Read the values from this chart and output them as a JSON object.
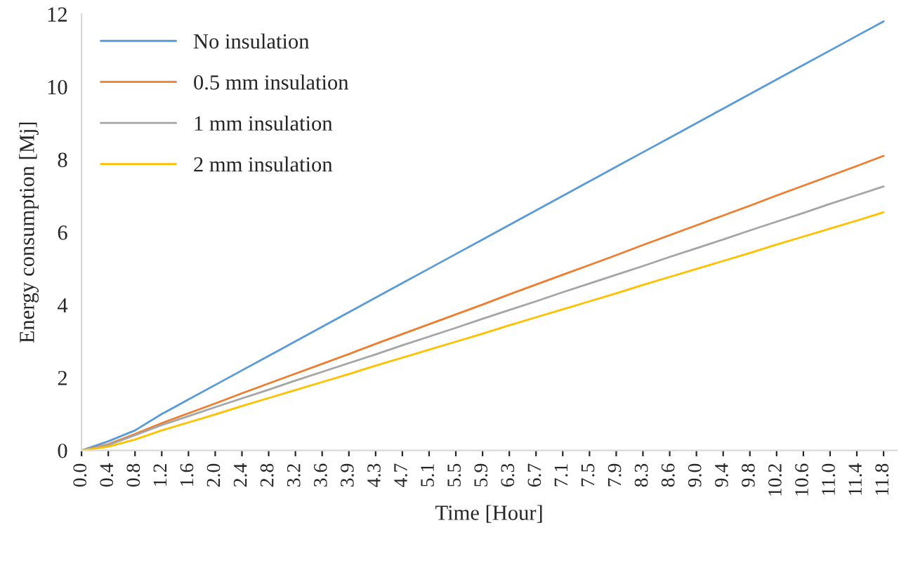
{
  "chart_data": {
    "type": "line",
    "xlabel": "Time [Hour]",
    "ylabel": "Energy consumption [Mj]",
    "categories": [
      "0.0",
      "0.4",
      "0.8",
      "1.2",
      "1.6",
      "2.0",
      "2.4",
      "2.8",
      "3.2",
      "3.6",
      "3.9",
      "4.3",
      "4.7",
      "5.1",
      "5.5",
      "5.9",
      "6.3",
      "6.7",
      "7.1",
      "7.5",
      "7.9",
      "8.3",
      "8.6",
      "9.0",
      "9.4",
      "9.8",
      "10.2",
      "10.6",
      "11.0",
      "11.4",
      "11.8"
    ],
    "series": [
      {
        "name": "No insulation",
        "color": "#5b9bd5",
        "values": [
          0,
          0.25,
          0.55,
          1.0,
          1.4,
          1.8,
          2.2,
          2.6,
          3.0,
          3.4,
          3.8,
          4.2,
          4.6,
          5.0,
          5.4,
          5.8,
          6.2,
          6.6,
          7.0,
          7.4,
          7.8,
          8.2,
          8.6,
          9.0,
          9.4,
          9.8,
          10.2,
          10.6,
          11.0,
          11.4,
          11.8
        ]
      },
      {
        "name": "0.5 mm insulation",
        "color": "#ed7d31",
        "values": [
          0,
          0.17,
          0.45,
          0.75,
          1.02,
          1.29,
          1.57,
          1.84,
          2.11,
          2.38,
          2.65,
          2.93,
          3.2,
          3.47,
          3.74,
          4.01,
          4.29,
          4.56,
          4.83,
          5.1,
          5.37,
          5.65,
          5.92,
          6.19,
          6.46,
          6.73,
          7.01,
          7.28,
          7.55,
          7.82,
          8.1
        ]
      },
      {
        "name": "1 mm insulation",
        "color": "#a5a5a5",
        "values": [
          0,
          0.15,
          0.42,
          0.7,
          0.94,
          1.19,
          1.43,
          1.67,
          1.92,
          2.16,
          2.4,
          2.64,
          2.89,
          3.13,
          3.37,
          3.62,
          3.86,
          4.1,
          4.35,
          4.59,
          4.83,
          5.07,
          5.32,
          5.56,
          5.8,
          6.05,
          6.29,
          6.53,
          6.78,
          7.02,
          7.26
        ]
      },
      {
        "name": "2 mm insulation",
        "color": "#ffc000",
        "values": [
          0,
          0.1,
          0.3,
          0.55,
          0.77,
          0.99,
          1.22,
          1.44,
          1.66,
          1.88,
          2.1,
          2.33,
          2.55,
          2.77,
          2.99,
          3.21,
          3.44,
          3.66,
          3.88,
          4.1,
          4.32,
          4.55,
          4.77,
          4.99,
          5.21,
          5.43,
          5.66,
          5.88,
          6.1,
          6.32,
          6.55
        ]
      }
    ],
    "ylim": [
      0,
      12
    ],
    "yticks": [
      0,
      2,
      4,
      6,
      8,
      10,
      12
    ],
    "grid": false,
    "legend": "top left",
    "marker": "none",
    "line_style": "solid"
  }
}
